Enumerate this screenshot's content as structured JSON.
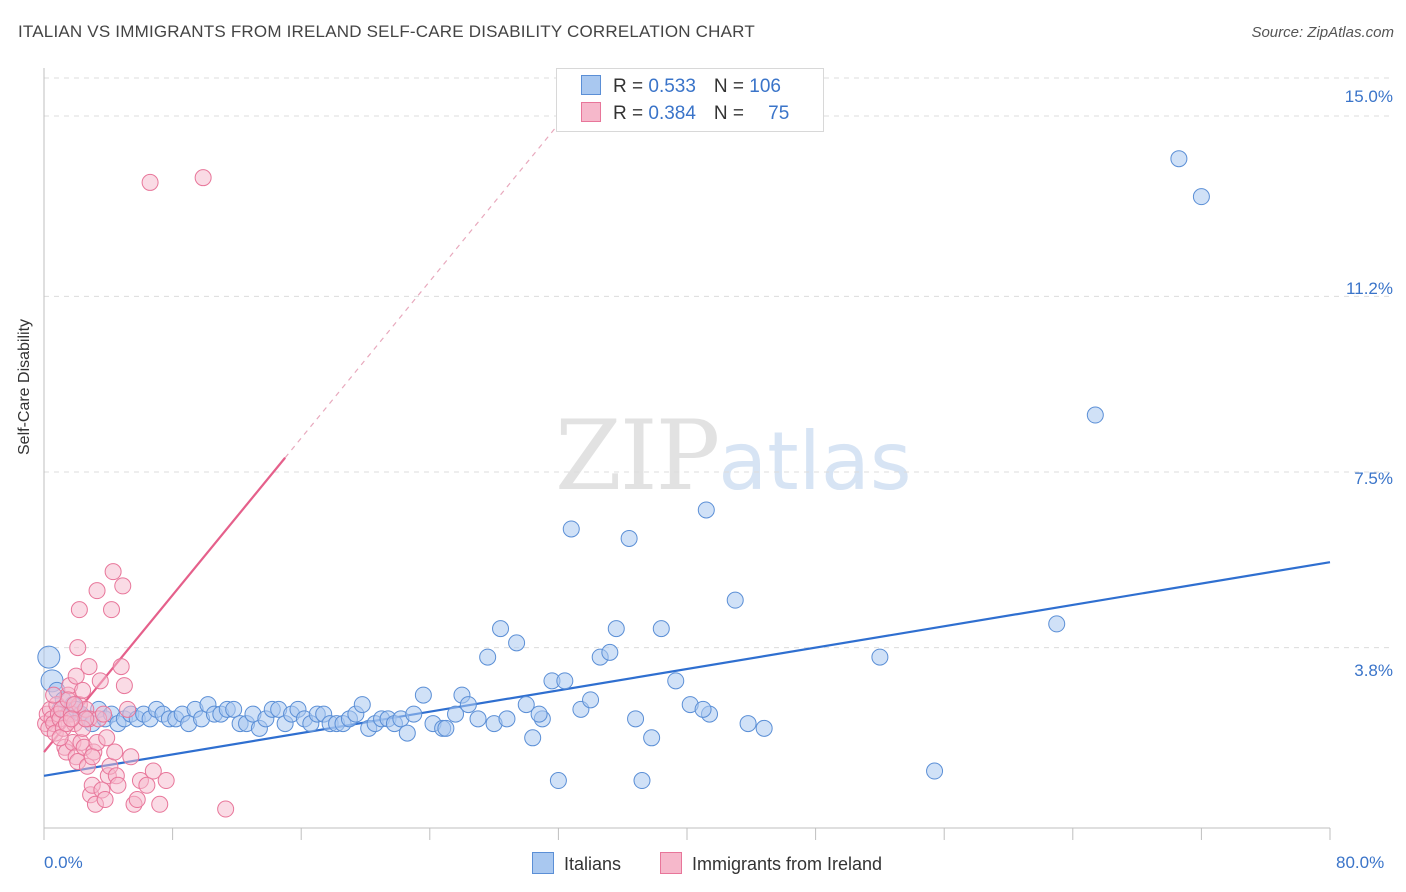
{
  "header": {
    "title": "ITALIAN VS IMMIGRANTS FROM IRELAND SELF-CARE DISABILITY CORRELATION CHART",
    "source": "Source: ZipAtlas.com"
  },
  "legend": {
    "rows": [
      {
        "r_label": "R = ",
        "r_value": "0.533",
        "n_label": "N = ",
        "n_value": "106"
      },
      {
        "r_label": "R = ",
        "r_value": "0.384",
        "n_label": "N = ",
        "n_value": "75"
      }
    ]
  },
  "watermark": {
    "zip": "ZIP",
    "atlas": "atlas"
  },
  "colors": {
    "blue_fill": "#a9c8f0",
    "blue_stroke": "#5b8fd6",
    "blue_line": "#2f6fd0",
    "pink_fill": "#f6b8cb",
    "pink_stroke": "#e8769a",
    "pink_line": "#e5608b",
    "tick_text": "#3a74c9",
    "grid": "#dcdcdc"
  },
  "chart_data": {
    "type": "scatter",
    "title": "ITALIAN VS IMMIGRANTS FROM IRELAND SELF-CARE DISABILITY CORRELATION CHART",
    "xlabel": "",
    "ylabel": "Self-Care Disability",
    "xlim": [
      0,
      80
    ],
    "ylim": [
      0,
      15.8
    ],
    "x_tick_labels": [
      "0.0%",
      "80.0%"
    ],
    "y_ticks": [
      {
        "value": 15.0,
        "label": "15.0%"
      },
      {
        "value": 11.2,
        "label": "11.2%"
      },
      {
        "value": 7.5,
        "label": "7.5%"
      },
      {
        "value": 3.8,
        "label": "3.8%"
      }
    ],
    "grid": true,
    "legend_position": "bottom",
    "series": [
      {
        "name": "Italians",
        "color": "#a9c8f0",
        "trend": {
          "x": [
            0,
            80
          ],
          "y": [
            1.1,
            5.6
          ]
        },
        "points": [
          [
            0.3,
            3.6
          ],
          [
            0.5,
            3.1
          ],
          [
            0.8,
            2.9
          ],
          [
            1.0,
            2.5
          ],
          [
            1.2,
            2.7
          ],
          [
            1.5,
            2.4
          ],
          [
            1.8,
            2.6
          ],
          [
            2.0,
            2.5
          ],
          [
            2.3,
            2.4
          ],
          [
            2.6,
            2.3
          ],
          [
            3.0,
            2.2
          ],
          [
            3.4,
            2.5
          ],
          [
            3.8,
            2.3
          ],
          [
            4.2,
            2.4
          ],
          [
            4.6,
            2.2
          ],
          [
            5.0,
            2.3
          ],
          [
            5.4,
            2.4
          ],
          [
            5.8,
            2.3
          ],
          [
            6.2,
            2.4
          ],
          [
            6.6,
            2.3
          ],
          [
            7.0,
            2.5
          ],
          [
            7.4,
            2.4
          ],
          [
            7.8,
            2.3
          ],
          [
            8.2,
            2.3
          ],
          [
            8.6,
            2.4
          ],
          [
            9.0,
            2.2
          ],
          [
            9.4,
            2.5
          ],
          [
            9.8,
            2.3
          ],
          [
            10.2,
            2.6
          ],
          [
            10.6,
            2.4
          ],
          [
            11.0,
            2.4
          ],
          [
            11.4,
            2.5
          ],
          [
            11.8,
            2.5
          ],
          [
            12.2,
            2.2
          ],
          [
            12.6,
            2.2
          ],
          [
            13.0,
            2.4
          ],
          [
            13.4,
            2.1
          ],
          [
            13.8,
            2.3
          ],
          [
            14.2,
            2.5
          ],
          [
            14.6,
            2.5
          ],
          [
            15.0,
            2.2
          ],
          [
            15.4,
            2.4
          ],
          [
            15.8,
            2.5
          ],
          [
            16.2,
            2.3
          ],
          [
            16.6,
            2.2
          ],
          [
            17.0,
            2.4
          ],
          [
            17.4,
            2.4
          ],
          [
            17.8,
            2.2
          ],
          [
            18.2,
            2.2
          ],
          [
            18.6,
            2.2
          ],
          [
            19.0,
            2.3
          ],
          [
            19.4,
            2.4
          ],
          [
            19.8,
            2.6
          ],
          [
            20.2,
            2.1
          ],
          [
            20.6,
            2.2
          ],
          [
            21.0,
            2.3
          ],
          [
            21.4,
            2.3
          ],
          [
            21.8,
            2.2
          ],
          [
            22.2,
            2.3
          ],
          [
            22.6,
            2.0
          ],
          [
            23.0,
            2.4
          ],
          [
            23.6,
            2.8
          ],
          [
            24.2,
            2.2
          ],
          [
            24.8,
            2.1
          ],
          [
            25.0,
            2.1
          ],
          [
            25.6,
            2.4
          ],
          [
            26.0,
            2.8
          ],
          [
            26.4,
            2.6
          ],
          [
            27.0,
            2.3
          ],
          [
            27.6,
            3.6
          ],
          [
            28.0,
            2.2
          ],
          [
            28.4,
            4.2
          ],
          [
            28.8,
            2.3
          ],
          [
            29.4,
            3.9
          ],
          [
            30.0,
            2.6
          ],
          [
            30.4,
            1.9
          ],
          [
            31.0,
            2.3
          ],
          [
            31.6,
            3.1
          ],
          [
            32.0,
            1.0
          ],
          [
            32.4,
            3.1
          ],
          [
            32.8,
            6.3
          ],
          [
            33.4,
            2.5
          ],
          [
            34.0,
            2.7
          ],
          [
            34.6,
            3.6
          ],
          [
            35.2,
            3.7
          ],
          [
            35.6,
            4.2
          ],
          [
            36.4,
            6.1
          ],
          [
            36.8,
            2.3
          ],
          [
            37.2,
            1.0
          ],
          [
            37.8,
            1.9
          ],
          [
            38.4,
            4.2
          ],
          [
            41.2,
            6.7
          ],
          [
            41.4,
            2.4
          ],
          [
            43.0,
            4.8
          ],
          [
            43.8,
            2.2
          ],
          [
            44.8,
            2.1
          ],
          [
            52.0,
            3.6
          ],
          [
            55.4,
            1.2
          ],
          [
            63.0,
            4.3
          ],
          [
            65.4,
            8.7
          ],
          [
            70.6,
            14.1
          ],
          [
            72.0,
            13.3
          ],
          [
            39.3,
            3.1
          ],
          [
            40.2,
            2.6
          ],
          [
            41.0,
            2.5
          ],
          [
            30.8,
            2.4
          ]
        ]
      },
      {
        "name": "Immigrants from Ireland",
        "color": "#f6b8cb",
        "trend": {
          "x": [
            0,
            15
          ],
          "y": [
            1.6,
            7.8
          ]
        },
        "points": [
          [
            0.1,
            2.2
          ],
          [
            0.2,
            2.4
          ],
          [
            0.3,
            2.1
          ],
          [
            0.4,
            2.5
          ],
          [
            0.5,
            2.3
          ],
          [
            0.6,
            2.2
          ],
          [
            0.7,
            2.0
          ],
          [
            0.8,
            2.6
          ],
          [
            0.9,
            2.4
          ],
          [
            1.0,
            2.3
          ],
          [
            1.1,
            2.5
          ],
          [
            1.2,
            2.1
          ],
          [
            1.3,
            1.7
          ],
          [
            1.4,
            1.6
          ],
          [
            1.5,
            2.8
          ],
          [
            1.6,
            3.0
          ],
          [
            1.7,
            2.4
          ],
          [
            1.8,
            1.8
          ],
          [
            1.9,
            2.2
          ],
          [
            2.0,
            1.5
          ],
          [
            2.1,
            1.4
          ],
          [
            2.2,
            2.6
          ],
          [
            2.3,
            1.8
          ],
          [
            2.4,
            2.9
          ],
          [
            2.5,
            1.7
          ],
          [
            2.6,
            2.5
          ],
          [
            2.7,
            1.3
          ],
          [
            2.8,
            2.3
          ],
          [
            2.9,
            0.7
          ],
          [
            3.0,
            0.9
          ],
          [
            3.1,
            1.6
          ],
          [
            3.2,
            0.5
          ],
          [
            3.3,
            1.8
          ],
          [
            3.4,
            2.3
          ],
          [
            3.5,
            3.1
          ],
          [
            3.6,
            0.8
          ],
          [
            3.7,
            2.4
          ],
          [
            3.8,
            0.6
          ],
          [
            3.9,
            1.9
          ],
          [
            4.0,
            1.1
          ],
          [
            4.1,
            1.3
          ],
          [
            4.2,
            4.6
          ],
          [
            4.3,
            5.4
          ],
          [
            4.4,
            1.6
          ],
          [
            4.5,
            1.1
          ],
          [
            4.6,
            0.9
          ],
          [
            4.8,
            3.4
          ],
          [
            5.0,
            3.0
          ],
          [
            5.2,
            2.5
          ],
          [
            5.4,
            1.5
          ],
          [
            5.6,
            0.5
          ],
          [
            5.8,
            0.6
          ],
          [
            6.0,
            1.0
          ],
          [
            6.4,
            0.9
          ],
          [
            6.8,
            1.2
          ],
          [
            7.2,
            0.5
          ],
          [
            7.6,
            1.0
          ],
          [
            4.9,
            5.1
          ],
          [
            3.3,
            5.0
          ],
          [
            2.2,
            4.6
          ],
          [
            2.4,
            2.1
          ],
          [
            2.0,
            3.2
          ],
          [
            1.5,
            2.7
          ],
          [
            2.8,
            3.4
          ],
          [
            1.0,
            1.9
          ],
          [
            6.6,
            13.6
          ],
          [
            9.9,
            13.7
          ],
          [
            11.3,
            0.4
          ],
          [
            1.9,
            2.6
          ],
          [
            0.6,
            2.8
          ],
          [
            1.4,
            2.2
          ],
          [
            2.6,
            2.3
          ],
          [
            3.0,
            1.5
          ],
          [
            2.1,
            3.8
          ],
          [
            1.7,
            2.3
          ]
        ]
      }
    ]
  }
}
